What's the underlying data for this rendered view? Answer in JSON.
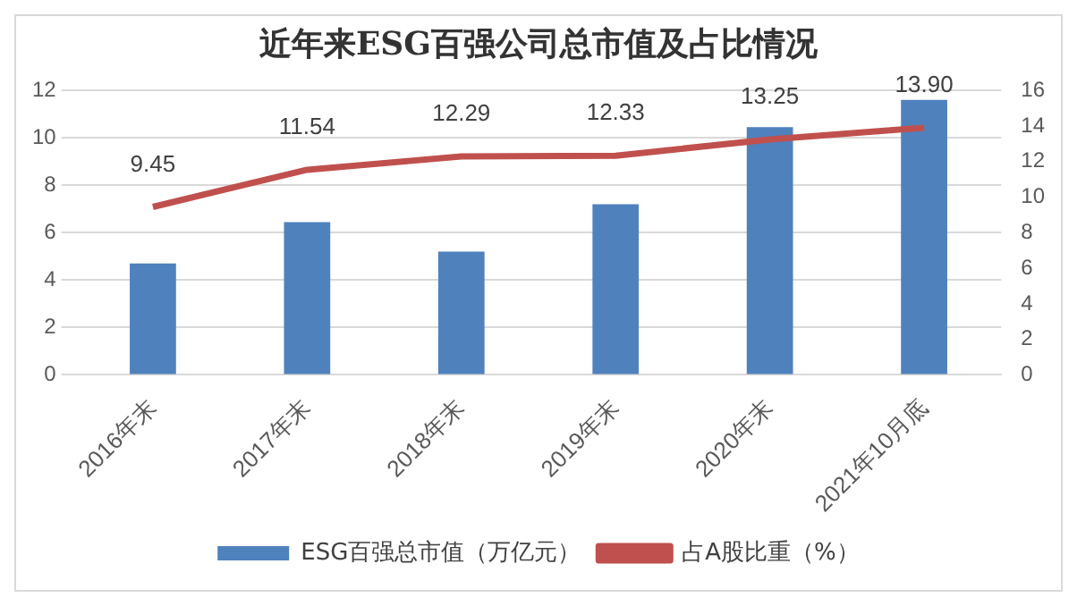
{
  "chart_data": {
    "type": "bar",
    "title": "近年来ESG百强公司总市值及占比情况",
    "categories": [
      "2016年末",
      "2017年末",
      "2018年末",
      "2019年末",
      "2020年末",
      "2021年10月底"
    ],
    "series": [
      {
        "name": "ESG百强总市值（万亿元）",
        "color": "#4f81bd",
        "values": [
          4.7,
          6.45,
          5.2,
          7.2,
          10.45,
          11.6
        ]
      },
      {
        "name": "占A股比重（%）",
        "type": "line",
        "axis": "y2",
        "color": "#c0504d",
        "values": [
          9.45,
          11.54,
          12.29,
          12.33,
          13.25,
          13.9
        ],
        "value_labels": [
          "9.45",
          "11.54",
          "12.29",
          "12.33",
          "13.25",
          "13.90"
        ]
      }
    ],
    "ylim": [
      0,
      12
    ],
    "yticks": [
      0,
      2,
      4,
      6,
      8,
      10,
      12
    ],
    "y2lim": [
      0,
      16
    ],
    "y2ticks": [
      0,
      2,
      4,
      6,
      8,
      10,
      12,
      14,
      16
    ],
    "grid": "y",
    "legend": "bottom",
    "marker": "none"
  }
}
